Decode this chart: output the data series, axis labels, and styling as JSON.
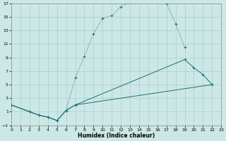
{
  "xlabel": "Humidex (Indice chaleur)",
  "bg_color": "#cce8e6",
  "grid_color": "#aacccc",
  "line_color": "#1a7070",
  "xlim": [
    0,
    23
  ],
  "ylim": [
    -1,
    17
  ],
  "yticks": [
    -1,
    1,
    3,
    5,
    7,
    9,
    11,
    13,
    15,
    17
  ],
  "xticks": [
    0,
    1,
    2,
    3,
    4,
    5,
    6,
    7,
    8,
    9,
    10,
    11,
    12,
    13,
    14,
    15,
    16,
    17,
    18,
    19,
    20,
    21,
    22,
    23
  ],
  "curve1_x": [
    0,
    2,
    3,
    4,
    5,
    6,
    7,
    8,
    9,
    10,
    11,
    12,
    13,
    14,
    15,
    16,
    17,
    18,
    19
  ],
  "curve1_y": [
    2,
    1,
    0.5,
    0.2,
    -0.3,
    1.2,
    6.0,
    9.2,
    12.5,
    14.8,
    15.2,
    16.5,
    17.2,
    17.4,
    17.5,
    17.3,
    17.0,
    14.0,
    10.5
  ],
  "curve1_style": "dotted",
  "curve2_x": [
    0,
    2,
    3,
    4,
    5,
    6,
    7,
    19,
    20,
    21,
    22
  ],
  "curve2_y": [
    2,
    1,
    0.5,
    0.2,
    -0.3,
    1.2,
    2.0,
    8.7,
    7.5,
    6.5,
    5.0
  ],
  "curve2_style": "solid",
  "curve3_x": [
    0,
    2,
    3,
    4,
    5,
    6,
    7,
    22
  ],
  "curve3_y": [
    2,
    1,
    0.5,
    0.2,
    -0.3,
    1.2,
    2.0,
    5.0
  ],
  "curve3_style": "solid"
}
